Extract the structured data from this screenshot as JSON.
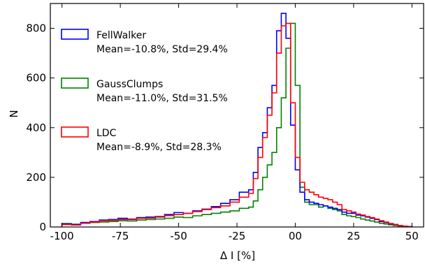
{
  "chart_data": {
    "type": "histogram",
    "xlabel": "Δ I [%]",
    "ylabel": "N",
    "xlim": [
      -105,
      55
    ],
    "ylim": [
      0,
      900
    ],
    "x_ticks": [
      -100,
      -75,
      -50,
      -25,
      0,
      25,
      50
    ],
    "x_tick_labels": [
      "-100",
      "-75",
      "-50",
      "-25",
      "00",
      "25",
      "50"
    ],
    "y_ticks": [
      0,
      200,
      400,
      600,
      800
    ],
    "y_tick_labels": [
      "0",
      "200",
      "400",
      "600",
      "800"
    ],
    "grid": false,
    "legend_position": "upper-left",
    "bin_edges": [
      -100,
      -96,
      -92,
      -88,
      -84,
      -80,
      -76,
      -72,
      -68,
      -64,
      -60,
      -56,
      -52,
      -48,
      -44,
      -40,
      -36,
      -32,
      -28,
      -24,
      -20,
      -18,
      -16,
      -14,
      -12,
      -10,
      -8,
      -6,
      -4,
      -2,
      0,
      2,
      4,
      6,
      8,
      10,
      12,
      14,
      16,
      18,
      20,
      22,
      24,
      26,
      28,
      30,
      32,
      34,
      36,
      38,
      40,
      42,
      44,
      46,
      48,
      50
    ],
    "series": [
      {
        "name": "FellWalker",
        "stats": "Mean=-10.8%, Std=29.4%",
        "color": "#0000ff",
        "values": [
          12,
          10,
          18,
          22,
          28,
          30,
          35,
          32,
          38,
          40,
          42,
          50,
          58,
          55,
          65,
          72,
          82,
          95,
          110,
          140,
          150,
          220,
          320,
          380,
          480,
          570,
          790,
          860,
          760,
          410,
          230,
          140,
          110,
          100,
          95,
          90,
          85,
          80,
          75,
          70,
          60,
          55,
          55,
          48,
          45,
          40,
          35,
          30,
          22,
          18,
          12,
          10,
          5,
          3,
          2
        ]
      },
      {
        "name": "GaussClumps",
        "stats": "Mean=-11.0%, Std=31.5%",
        "color": "#008000",
        "values": [
          14,
          11,
          15,
          18,
          20,
          22,
          25,
          24,
          28,
          30,
          32,
          35,
          40,
          38,
          45,
          50,
          55,
          60,
          65,
          75,
          80,
          105,
          150,
          200,
          250,
          300,
          400,
          520,
          720,
          820,
          570,
          160,
          100,
          90,
          90,
          80,
          85,
          75,
          70,
          65,
          50,
          45,
          42,
          38,
          32,
          28,
          24,
          20,
          15,
          12,
          9,
          6,
          4,
          3,
          2
        ]
      },
      {
        "name": "LDC",
        "stats": "Mean=-8.9%, Std=28.3%",
        "color": "#ff0000",
        "values": [
          10,
          8,
          15,
          20,
          25,
          27,
          30,
          30,
          35,
          36,
          40,
          46,
          50,
          55,
          62,
          70,
          78,
          85,
          100,
          120,
          135,
          195,
          280,
          360,
          450,
          540,
          700,
          810,
          820,
          500,
          280,
          180,
          150,
          140,
          130,
          120,
          115,
          110,
          100,
          90,
          70,
          65,
          60,
          52,
          48,
          42,
          38,
          32,
          25,
          20,
          14,
          10,
          6,
          3,
          2
        ]
      }
    ]
  }
}
